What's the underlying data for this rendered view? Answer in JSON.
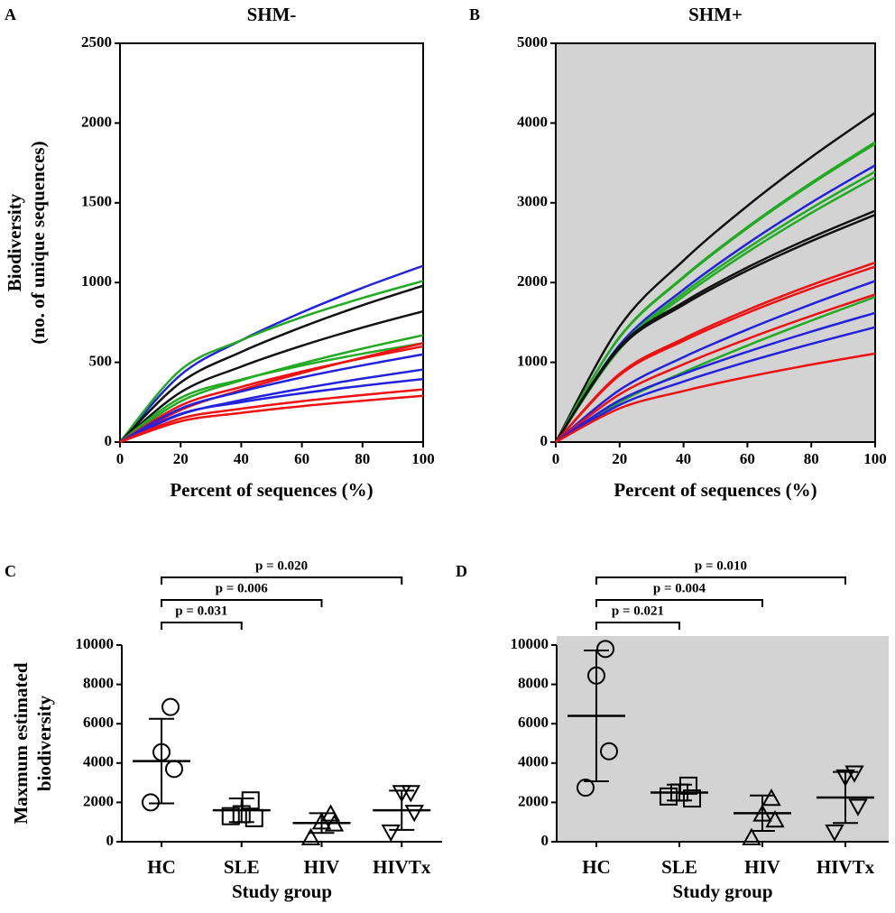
{
  "chart_data": [
    {
      "type": "line",
      "panel": "A",
      "title": "SHM-",
      "xlabel": "Percent of sequences (%)",
      "ylabel": [
        "Biodiversity",
        "(no. of unique sequences)"
      ],
      "x": [
        0,
        20,
        40,
        60,
        80,
        100
      ],
      "xlim": [
        0,
        100
      ],
      "xticks": [
        0,
        20,
        40,
        60,
        80,
        100
      ],
      "ylim": [
        0,
        2500
      ],
      "yticks": [
        0,
        500,
        1000,
        1500,
        2000,
        2500
      ],
      "background": "#ffffff",
      "series": [
        {
          "color": "#2222dd",
          "values": [
            0,
            421,
            638,
            813,
            967,
            1105
          ]
        },
        {
          "color": "#22aa22",
          "values": [
            0,
            452,
            638,
            783,
            903,
            1010
          ]
        },
        {
          "color": "#111111",
          "values": [
            0,
            373,
            565,
            721,
            858,
            980
          ]
        },
        {
          "color": "#111111",
          "values": [
            0,
            312,
            473,
            604,
            718,
            820
          ]
        },
        {
          "color": "#22aa22",
          "values": [
            0,
            255,
            387,
            493,
            586,
            670
          ]
        },
        {
          "color": "#22aa22",
          "values": [
            0,
            277,
            392,
            480,
            554,
            620
          ]
        },
        {
          "color": "#ee1111",
          "values": [
            0,
            201,
            327,
            433,
            530,
            620
          ]
        },
        {
          "color": "#ee1111",
          "values": [
            0,
            229,
            346,
            442,
            525,
            600
          ]
        },
        {
          "color": "#2222dd",
          "values": [
            0,
            210,
            317,
            405,
            481,
            550
          ]
        },
        {
          "color": "#2222dd",
          "values": [
            0,
            173,
            263,
            335,
            398,
            455
          ]
        },
        {
          "color": "#2222dd",
          "values": [
            0,
            177,
            250,
            306,
            353,
            395
          ]
        },
        {
          "color": "#ee1111",
          "values": [
            0,
            148,
            209,
            256,
            295,
            330
          ]
        },
        {
          "color": "#ee1111",
          "values": [
            0,
            130,
            183,
            225,
            259,
            290
          ]
        }
      ]
    },
    {
      "type": "line",
      "panel": "B",
      "title": "SHM+",
      "xlabel": "Percent of sequences (%)",
      "x": [
        0,
        20,
        40,
        60,
        80,
        100
      ],
      "xlim": [
        0,
        100
      ],
      "xticks": [
        0,
        20,
        40,
        60,
        80,
        100
      ],
      "ylim": [
        0,
        5000
      ],
      "yticks": [
        0,
        1000,
        2000,
        3000,
        4000,
        5000
      ],
      "background": "#d3d3d3",
      "series": [
        {
          "color": "#111111",
          "values": [
            0,
            1450,
            2276,
            2961,
            3572,
            4130
          ]
        },
        {
          "color": "#22aa22",
          "values": [
            0,
            1320,
            2072,
            2696,
            3252,
            3760
          ]
        },
        {
          "color": "#22aa22",
          "values": [
            0,
            1313,
            2061,
            2682,
            3235,
            3740
          ]
        },
        {
          "color": "#2222dd",
          "values": [
            0,
            1218,
            1912,
            2488,
            3002,
            3470
          ]
        },
        {
          "color": "#22aa22",
          "values": [
            0,
            1190,
            1868,
            2431,
            2932,
            3390
          ]
        },
        {
          "color": "#22aa22",
          "values": [
            0,
            1165,
            1829,
            2380,
            2872,
            3320
          ]
        },
        {
          "color": "#111111",
          "values": [
            0,
            1198,
            1752,
            2190,
            2564,
            2900
          ]
        },
        {
          "color": "#111111",
          "values": [
            0,
            1177,
            1721,
            2152,
            2519,
            2850
          ]
        },
        {
          "color": "#ee1111",
          "values": [
            0,
            857,
            1298,
            1656,
            1969,
            2250
          ]
        },
        {
          "color": "#ee1111",
          "values": [
            0,
            838,
            1269,
            1619,
            1925,
            2200
          ]
        },
        {
          "color": "#2222dd",
          "values": [
            0,
            654,
            1065,
            1412,
            1727,
            2020
          ]
        },
        {
          "color": "#ee1111",
          "values": [
            0,
            599,
            975,
            1293,
            1582,
            1850
          ]
        },
        {
          "color": "#22aa22",
          "values": [
            0,
            502,
            875,
            1210,
            1523,
            1820
          ]
        },
        {
          "color": "#2222dd",
          "values": [
            0,
            525,
            854,
            1132,
            1385,
            1620
          ]
        },
        {
          "color": "#2222dd",
          "values": [
            0,
            467,
            759,
            1007,
            1231,
            1440
          ]
        },
        {
          "color": "#ee1111",
          "values": [
            0,
            423,
            640,
            817,
            971,
            1110
          ]
        }
      ]
    },
    {
      "type": "dot",
      "panel": "C",
      "xlabel": "Study group",
      "ylabel": [
        "Maxmum estimated",
        "biodiversity"
      ],
      "categories": [
        "HC",
        "SLE",
        "HIV",
        "HIVTx"
      ],
      "ylim": [
        0,
        10000
      ],
      "yticks": [
        0,
        2000,
        4000,
        6000,
        8000,
        10000
      ],
      "background": "#ffffff",
      "series": [
        {
          "marker": "circle",
          "mean": 4100,
          "sd": 2150,
          "values": [
            6850,
            4550,
            3700,
            2000
          ]
        },
        {
          "marker": "square",
          "mean": 1600,
          "sd": 600,
          "values": [
            2100,
            1400,
            1200,
            1300
          ]
        },
        {
          "marker": "triangle-up",
          "mean": 950,
          "sd": 500,
          "values": [
            1400,
            1000,
            900,
            200
          ]
        },
        {
          "marker": "triangle-down",
          "mean": 1600,
          "sd": 1000,
          "values": [
            2500,
            2500,
            1500,
            500
          ]
        }
      ],
      "comparisons": [
        {
          "from": 0,
          "to": 1,
          "label": "p = 0.031"
        },
        {
          "from": 0,
          "to": 2,
          "label": "p = 0.006"
        },
        {
          "from": 0,
          "to": 3,
          "label": "p = 0.020"
        }
      ]
    },
    {
      "type": "dot",
      "panel": "D",
      "xlabel": "Study group",
      "categories": [
        "HC",
        "SLE",
        "HIV",
        "HIVTx"
      ],
      "ylim": [
        0,
        10000
      ],
      "yticks": [
        0,
        2000,
        4000,
        6000,
        8000,
        10000
      ],
      "background": "#d3d3d3",
      "series": [
        {
          "marker": "circle",
          "mean": 6400,
          "sd": 3325,
          "values": [
            9800,
            8450,
            4600,
            2750
          ]
        },
        {
          "marker": "square",
          "mean": 2500,
          "sd": 400,
          "values": [
            2850,
            2500,
            2200,
            2300
          ]
        },
        {
          "marker": "triangle-up",
          "mean": 1450,
          "sd": 900,
          "values": [
            2200,
            1400,
            1100,
            200
          ]
        },
        {
          "marker": "triangle-down",
          "mean": 2250,
          "sd": 1300,
          "values": [
            3500,
            3300,
            1800,
            500
          ]
        }
      ],
      "comparisons": [
        {
          "from": 0,
          "to": 1,
          "label": "p = 0.021"
        },
        {
          "from": 0,
          "to": 2,
          "label": "p = 0.004"
        },
        {
          "from": 0,
          "to": 3,
          "label": "p = 0.010"
        }
      ]
    }
  ]
}
